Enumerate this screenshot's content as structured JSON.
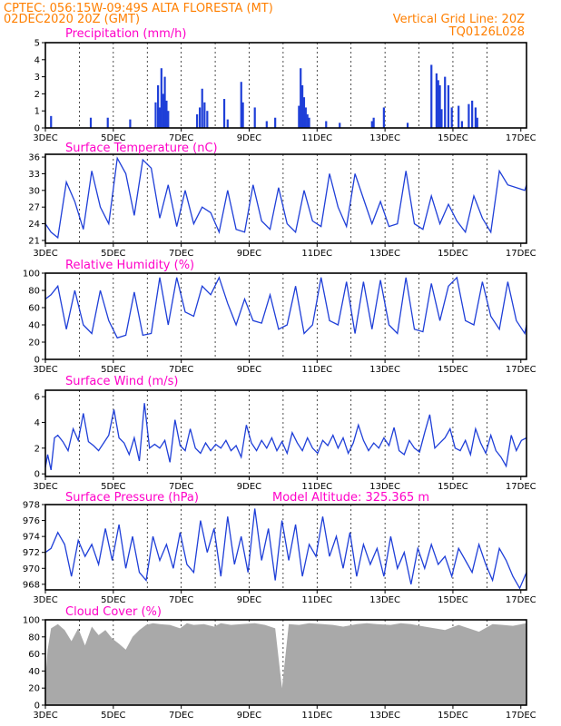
{
  "header": {
    "line1": "CPTEC:   056:15W-09:49S   ALTA FLORESTA (MT)",
    "line2": "02DEC2020 20Z (GMT)",
    "grid_note": "Vertical Grid Line: 20Z",
    "code": "TQ0126L028"
  },
  "colors": {
    "header": "#ff7f00",
    "panel_title": "#ff00c8",
    "line": "#1f3fd8",
    "bar": "#1f3fd8",
    "cloud": "#a9a9a9"
  },
  "x_ticks": [
    "3DEC",
    "5DEC",
    "7DEC",
    "9DEC",
    "11DEC",
    "13DEC",
    "15DEC",
    "17DEC"
  ],
  "chart_data": [
    {
      "id": "precip",
      "type": "bar",
      "title": "Precipitation (mm/h)",
      "xlim": [
        2.833,
        17.0
      ],
      "ylim": [
        0,
        5
      ],
      "yticks": [
        "0",
        "1",
        "2",
        "3",
        "4",
        "5"
      ],
      "grid": "vertical dashed at 20Z",
      "x": [
        3.0,
        4.17,
        4.67,
        5.33,
        6.08,
        6.15,
        6.2,
        6.25,
        6.3,
        6.35,
        6.4,
        6.45,
        7.3,
        7.38,
        7.45,
        7.52,
        7.6,
        8.1,
        8.2,
        8.6,
        8.65,
        9.0,
        9.35,
        9.6,
        10.3,
        10.35,
        10.4,
        10.45,
        10.5,
        10.55,
        10.6,
        11.1,
        11.5,
        12.45,
        12.5,
        12.8,
        13.5,
        14.2,
        14.35,
        14.4,
        14.45,
        14.5,
        14.6,
        14.7,
        14.8,
        15.0,
        15.1,
        15.3,
        15.4,
        15.5,
        15.55
      ],
      "values": [
        0.7,
        0.6,
        0.6,
        0.5,
        1.5,
        2.5,
        1.2,
        3.5,
        2.0,
        3.0,
        1.6,
        1.0,
        0.8,
        1.2,
        2.3,
        1.5,
        1.0,
        1.7,
        0.5,
        2.7,
        1.5,
        1.2,
        0.4,
        0.6,
        1.3,
        3.5,
        2.5,
        1.8,
        1.2,
        0.8,
        0.6,
        0.4,
        0.3,
        0.4,
        0.6,
        1.2,
        0.3,
        3.7,
        3.2,
        2.8,
        2.5,
        1.1,
        3.0,
        2.5,
        1.2,
        1.3,
        0.4,
        1.4,
        1.6,
        1.2,
        0.6
      ]
    },
    {
      "id": "temp",
      "type": "line",
      "title": "Surface Temperature (nC)",
      "xlim": [
        2.833,
        17.0
      ],
      "ylim": [
        20.5,
        36.5
      ],
      "yticks": [
        "21",
        "24",
        "27",
        "30",
        "33",
        "36"
      ],
      "grid": "vertical dashed at 20Z",
      "x": [
        2.833,
        3.0,
        3.2,
        3.45,
        3.7,
        3.95,
        4.2,
        4.45,
        4.7,
        4.95,
        5.2,
        5.45,
        5.7,
        5.95,
        6.2,
        6.45,
        6.7,
        6.95,
        7.2,
        7.45,
        7.7,
        7.95,
        8.2,
        8.45,
        8.7,
        8.95,
        9.2,
        9.45,
        9.7,
        9.95,
        10.2,
        10.45,
        10.7,
        10.95,
        11.2,
        11.45,
        11.7,
        11.95,
        12.2,
        12.45,
        12.7,
        12.95,
        13.2,
        13.45,
        13.7,
        13.95,
        14.2,
        14.45,
        14.7,
        14.95,
        15.2,
        15.45,
        15.7,
        15.95,
        16.2,
        16.45,
        16.7,
        16.95,
        17.0
      ],
      "values": [
        24.0,
        22.5,
        21.5,
        31.5,
        28.0,
        23.0,
        33.5,
        27.0,
        24.0,
        35.8,
        33.0,
        25.5,
        35.5,
        34.0,
        25.0,
        31.0,
        23.5,
        30.0,
        24.0,
        27.0,
        26.0,
        22.5,
        30.0,
        23.0,
        22.5,
        31.0,
        24.5,
        23.0,
        30.5,
        24.0,
        22.5,
        30.0,
        24.5,
        23.5,
        33.0,
        27.0,
        23.5,
        33.0,
        28.5,
        24.0,
        28.0,
        23.5,
        24.0,
        33.5,
        24.0,
        23.0,
        29.0,
        24.0,
        27.5,
        24.5,
        22.5,
        29.0,
        25.0,
        22.5,
        33.5,
        31.0,
        30.5,
        30.0,
        31.0
      ]
    },
    {
      "id": "rh",
      "type": "line",
      "title": "Relative Humidity (%)",
      "xlim": [
        2.833,
        17.0
      ],
      "ylim": [
        0,
        100
      ],
      "yticks": [
        "0",
        "20",
        "40",
        "60",
        "80",
        "100"
      ],
      "grid": "vertical dashed at 20Z",
      "x": [
        2.833,
        3.0,
        3.2,
        3.45,
        3.7,
        3.95,
        4.2,
        4.45,
        4.7,
        4.95,
        5.2,
        5.45,
        5.7,
        5.95,
        6.2,
        6.45,
        6.7,
        6.95,
        7.2,
        7.45,
        7.7,
        7.95,
        8.2,
        8.45,
        8.7,
        8.95,
        9.2,
        9.45,
        9.7,
        9.95,
        10.2,
        10.45,
        10.7,
        10.95,
        11.2,
        11.45,
        11.7,
        11.95,
        12.2,
        12.45,
        12.7,
        12.95,
        13.2,
        13.45,
        13.7,
        13.95,
        14.2,
        14.45,
        14.7,
        14.95,
        15.2,
        15.45,
        15.7,
        15.95,
        16.2,
        16.45,
        16.7,
        16.95,
        17.0
      ],
      "values": [
        70,
        75,
        85,
        35,
        80,
        40,
        30,
        80,
        45,
        25,
        28,
        78,
        28,
        30,
        95,
        40,
        95,
        55,
        50,
        85,
        75,
        95,
        65,
        40,
        70,
        45,
        42,
        75,
        35,
        40,
        85,
        30,
        40,
        95,
        45,
        40,
        90,
        30,
        90,
        35,
        92,
        40,
        30,
        95,
        35,
        32,
        88,
        45,
        85,
        95,
        45,
        40,
        90,
        50,
        35,
        90,
        45,
        30,
        40
      ]
    },
    {
      "id": "wind",
      "type": "line",
      "title": "Surface Wind (m/s)",
      "xlim": [
        2.833,
        17.0
      ],
      "ylim": [
        -0.2,
        6.5
      ],
      "yticks": [
        "0",
        "2",
        "4",
        "6"
      ],
      "grid": "vertical dashed at 20Z",
      "x": [
        2.833,
        2.9,
        3.0,
        3.1,
        3.2,
        3.35,
        3.5,
        3.65,
        3.8,
        3.95,
        4.1,
        4.25,
        4.4,
        4.55,
        4.7,
        4.85,
        5.0,
        5.15,
        5.3,
        5.45,
        5.6,
        5.75,
        5.9,
        6.05,
        6.2,
        6.35,
        6.5,
        6.65,
        6.8,
        6.95,
        7.1,
        7.25,
        7.4,
        7.55,
        7.7,
        7.85,
        8.0,
        8.15,
        8.3,
        8.45,
        8.6,
        8.75,
        8.9,
        9.05,
        9.2,
        9.35,
        9.5,
        9.65,
        9.8,
        9.95,
        10.1,
        10.25,
        10.4,
        10.55,
        10.7,
        10.85,
        11.0,
        11.15,
        11.3,
        11.45,
        11.6,
        11.75,
        11.9,
        12.05,
        12.2,
        12.35,
        12.5,
        12.65,
        12.8,
        12.95,
        13.1,
        13.25,
        13.4,
        13.55,
        13.7,
        13.85,
        14.0,
        14.15,
        14.3,
        14.45,
        14.6,
        14.75,
        14.9,
        15.05,
        15.2,
        15.35,
        15.5,
        15.65,
        15.8,
        15.95,
        16.1,
        16.25,
        16.4,
        16.55,
        16.7,
        16.85,
        17.0
      ],
      "values": [
        0.5,
        1.5,
        0.3,
        2.8,
        3.0,
        2.5,
        1.8,
        3.5,
        2.6,
        4.7,
        2.5,
        2.2,
        1.8,
        2.4,
        3.0,
        5.0,
        2.8,
        2.4,
        1.5,
        2.8,
        1.0,
        5.5,
        2.0,
        2.3,
        2.0,
        2.6,
        0.9,
        4.2,
        2.2,
        1.8,
        3.5,
        2.0,
        1.6,
        2.4,
        1.8,
        2.3,
        2.0,
        2.6,
        1.8,
        2.2,
        1.3,
        3.8,
        2.4,
        1.8,
        2.6,
        2.0,
        2.8,
        1.8,
        2.5,
        1.6,
        3.2,
        2.4,
        1.8,
        2.8,
        2.0,
        1.6,
        2.6,
        2.2,
        3.0,
        2.0,
        2.8,
        1.6,
        2.4,
        3.8,
        2.6,
        1.8,
        2.4,
        2.0,
        2.8,
        2.2,
        3.6,
        1.8,
        1.5,
        2.6,
        2.0,
        1.7,
        3.2,
        4.6,
        2.0,
        2.4,
        2.8,
        3.5,
        2.0,
        1.8,
        2.6,
        1.5,
        3.5,
        2.4,
        1.6,
        3.0,
        1.8,
        1.3,
        0.6,
        3.0,
        1.8,
        2.6,
        2.8
      ]
    },
    {
      "id": "pressure",
      "type": "line",
      "title": "Surface Pressure (hPa)",
      "annotation": "Model Altitude: 325.365 m",
      "xlim": [
        2.833,
        17.0
      ],
      "ylim": [
        967.3,
        978.0
      ],
      "yticks": [
        "968",
        "970",
        "972",
        "974",
        "976",
        "978"
      ],
      "grid": "vertical dashed at 20Z",
      "x": [
        2.833,
        3.0,
        3.2,
        3.4,
        3.6,
        3.8,
        4.0,
        4.2,
        4.4,
        4.6,
        4.8,
        5.0,
        5.2,
        5.4,
        5.6,
        5.8,
        6.0,
        6.2,
        6.4,
        6.6,
        6.8,
        7.0,
        7.2,
        7.4,
        7.6,
        7.8,
        8.0,
        8.2,
        8.4,
        8.6,
        8.8,
        9.0,
        9.2,
        9.4,
        9.6,
        9.8,
        10.0,
        10.2,
        10.4,
        10.6,
        10.8,
        11.0,
        11.2,
        11.4,
        11.6,
        11.8,
        12.0,
        12.2,
        12.4,
        12.6,
        12.8,
        13.0,
        13.2,
        13.4,
        13.6,
        13.8,
        14.0,
        14.2,
        14.4,
        14.6,
        14.8,
        15.0,
        15.2,
        15.4,
        15.6,
        15.8,
        16.0,
        16.2,
        16.4,
        16.6,
        16.8,
        17.0
      ],
      "values": [
        972.0,
        972.5,
        974.5,
        973.0,
        969.0,
        973.5,
        971.5,
        973.0,
        970.5,
        975.0,
        971.0,
        975.5,
        970.0,
        974.0,
        969.5,
        968.5,
        974.0,
        971.0,
        973.0,
        970.0,
        974.5,
        970.5,
        969.5,
        976.0,
        972.0,
        975.0,
        969.0,
        976.5,
        970.5,
        974.0,
        969.5,
        977.5,
        971.0,
        975.0,
        968.5,
        976.0,
        971.0,
        975.5,
        969.0,
        973.0,
        971.5,
        976.5,
        971.5,
        974.0,
        970.0,
        974.5,
        969.0,
        973.0,
        970.5,
        972.5,
        969.0,
        974.0,
        970.0,
        972.0,
        968.0,
        972.5,
        970.0,
        973.0,
        970.5,
        971.5,
        969.0,
        972.5,
        971.0,
        969.5,
        973.0,
        970.5,
        968.5,
        972.5,
        971.0,
        969.0,
        967.5,
        969.5
      ]
    },
    {
      "id": "cloud",
      "type": "area",
      "title": "Cloud Cover (%)",
      "xlim": [
        2.833,
        17.0
      ],
      "ylim": [
        0,
        100
      ],
      "yticks": [
        "0",
        "20",
        "40",
        "60",
        "80",
        "100"
      ],
      "grid": "vertical dashed at 20Z",
      "x": [
        2.833,
        2.9,
        3.0,
        3.2,
        3.4,
        3.6,
        3.8,
        4.0,
        4.2,
        4.4,
        4.6,
        4.8,
        5.0,
        5.2,
        5.4,
        5.6,
        5.8,
        6.0,
        6.2,
        6.5,
        6.8,
        7.0,
        7.2,
        7.5,
        7.8,
        8.0,
        8.3,
        8.6,
        9.0,
        9.3,
        9.6,
        9.8,
        10.0,
        10.3,
        10.6,
        11.0,
        11.3,
        11.6,
        12.0,
        12.3,
        12.6,
        13.0,
        13.3,
        13.6,
        14.0,
        14.3,
        14.6,
        15.0,
        15.3,
        15.6,
        16.0,
        16.3,
        16.6,
        17.0
      ],
      "values": [
        30,
        65,
        90,
        95,
        88,
        75,
        90,
        70,
        92,
        82,
        88,
        78,
        72,
        65,
        80,
        88,
        94,
        96,
        95,
        94,
        90,
        96,
        94,
        95,
        92,
        96,
        94,
        95,
        96,
        94,
        90,
        20,
        95,
        94,
        96,
        95,
        94,
        92,
        95,
        96,
        95,
        94,
        96,
        95,
        92,
        90,
        88,
        94,
        90,
        86,
        95,
        94,
        93,
        96
      ]
    }
  ]
}
